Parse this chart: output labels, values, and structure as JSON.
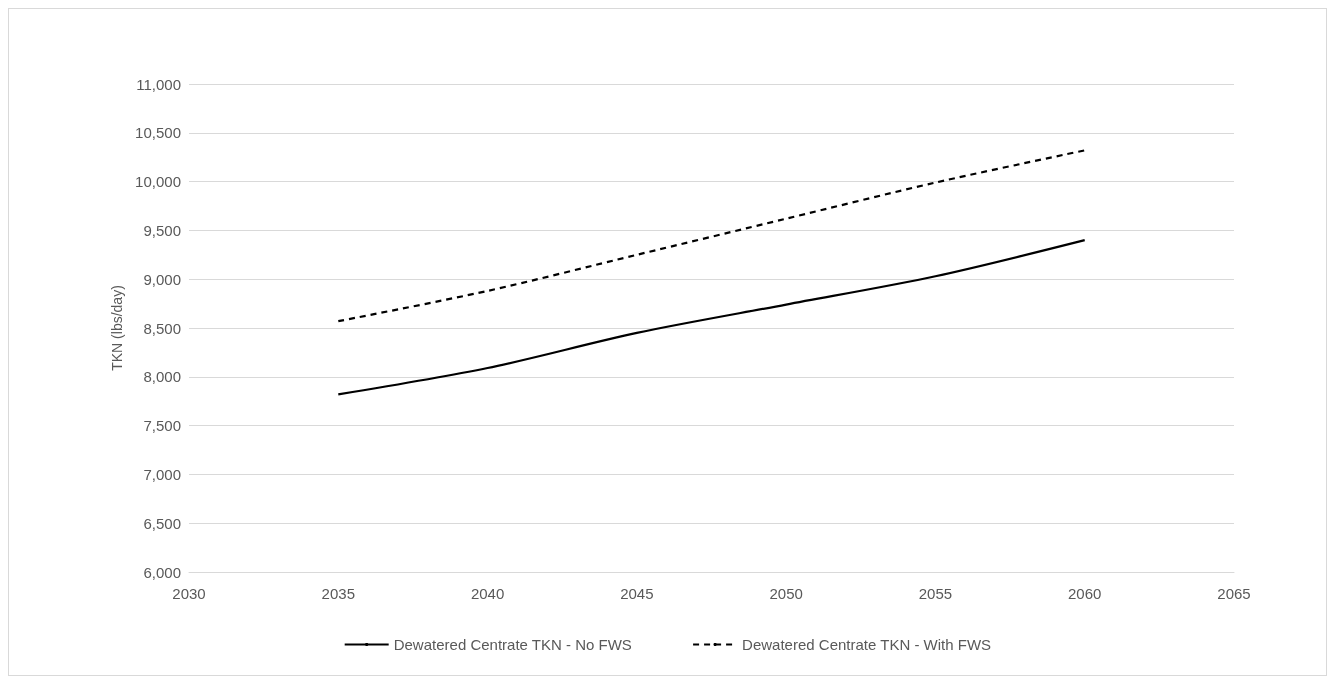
{
  "chart_data": {
    "type": "line",
    "ylabel": "TKN (lbs/day)",
    "x": [
      2035,
      2040,
      2045,
      2050,
      2055,
      2060
    ],
    "xlim": [
      2030,
      2065
    ],
    "xticks": [
      2030,
      2035,
      2040,
      2045,
      2050,
      2055,
      2060,
      2065
    ],
    "ylim": [
      6000,
      11000
    ],
    "yticks": [
      {
        "value": 6000,
        "label": "6,000"
      },
      {
        "value": 6500,
        "label": "6,500"
      },
      {
        "value": 7000,
        "label": "7,000"
      },
      {
        "value": 7500,
        "label": "7,500"
      },
      {
        "value": 8000,
        "label": "8,000"
      },
      {
        "value": 8500,
        "label": "8,500"
      },
      {
        "value": 9000,
        "label": "9,000"
      },
      {
        "value": 9500,
        "label": "9,500"
      },
      {
        "value": 10000,
        "label": "10,000"
      },
      {
        "value": 10500,
        "label": "10,500"
      },
      {
        "value": 11000,
        "label": "11,000"
      }
    ],
    "grid": "y",
    "legend": "bottom",
    "marker": "none",
    "series": [
      {
        "name": "Dewatered Centrate TKN - No FWS",
        "color": "#000000",
        "line_style": "solid",
        "values": [
          7820,
          8090,
          8450,
          8740,
          9030,
          9400
        ]
      },
      {
        "name": "Dewatered Centrate TKN - With FWS",
        "color": "#000000",
        "line_style": "dashed",
        "values": [
          8570,
          8880,
          9250,
          9620,
          9990,
          10320
        ]
      }
    ]
  }
}
